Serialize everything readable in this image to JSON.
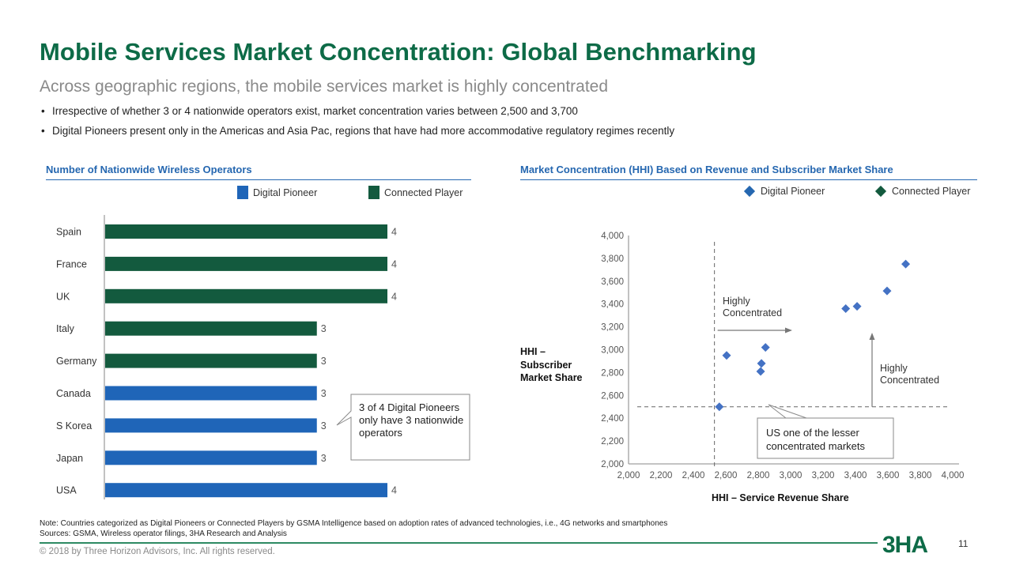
{
  "header": {
    "title": "Mobile Services Market Concentration: Global Benchmarking",
    "subtitle": "Across geographic regions, the mobile services market is highly concentrated",
    "bullets": [
      "Irrespective of whether 3 or 4 nationwide operators exist, market concentration varies between 2,500 and 3,700",
      "Digital Pioneers present only in the Americas and Asia Pac, regions that have had more accommodative regulatory regimes recently"
    ],
    "bullet_glyph": "•"
  },
  "colors": {
    "digital_pioneer_bar": "#1f65b8",
    "connected_player_bar": "#135a3e",
    "digital_pioneer_marker": "#4472c4",
    "connected_player_marker": "#135a3e",
    "title_green": "#0d6b47",
    "panel_blue": "#2567b0"
  },
  "chart_data": [
    {
      "type": "bar",
      "orientation": "horizontal",
      "title": "Number of Nationwide Wireless Operators",
      "legend": [
        {
          "label": "Digital Pioneer",
          "color": "#1f65b8"
        },
        {
          "label": "Connected Player",
          "color": "#135a3e"
        }
      ],
      "legend_position": "top-right",
      "categories": [
        "Spain",
        "France",
        "UK",
        "Italy",
        "Germany",
        "Canada",
        "S Korea",
        "Japan",
        "USA"
      ],
      "values": [
        4,
        4,
        4,
        3,
        3,
        3,
        3,
        3,
        4
      ],
      "groups": [
        "Connected Player",
        "Connected Player",
        "Connected Player",
        "Connected Player",
        "Connected Player",
        "Digital Pioneer",
        "Digital Pioneer",
        "Digital Pioneer",
        "Digital Pioneer"
      ],
      "data_labels": [
        "4",
        "4",
        "4",
        "3",
        "3",
        "3",
        "3",
        "3",
        "4"
      ],
      "xlim": [
        0,
        4
      ],
      "grid": false,
      "annotation": "3 of 4 Digital Pioneers only have 3 nationwide operators"
    },
    {
      "type": "scatter",
      "title": "Market Concentration (HHI) Based on Revenue and Subscriber Market Share",
      "xlabel": "HHI – Service Revenue Share",
      "ylabel": "HHI – Subscriber Market Share",
      "xlim": [
        2000,
        4000
      ],
      "ylim": [
        2000,
        4000
      ],
      "xticks": [
        "2,000",
        "2,200",
        "2,400",
        "2,600",
        "2,800",
        "3,000",
        "3,200",
        "3,400",
        "3,600",
        "3,800",
        "4,000"
      ],
      "yticks": [
        "2,000",
        "2,200",
        "2,400",
        "2,600",
        "2,800",
        "3,000",
        "3,200",
        "3,400",
        "3,600",
        "3,800",
        "4,000"
      ],
      "xtick_values": [
        2000,
        2200,
        2400,
        2600,
        2800,
        3000,
        3200,
        3400,
        3600,
        3800,
        4000
      ],
      "ytick_values": [
        2000,
        2200,
        2400,
        2600,
        2800,
        3000,
        3200,
        3400,
        3600,
        3800,
        4000
      ],
      "legend": [
        {
          "label": "Digital Pioneer",
          "color": "#2567b0"
        },
        {
          "label": "Connected Player",
          "color": "#135a3e"
        }
      ],
      "legend_position": "top-right",
      "grid": false,
      "series": [
        {
          "name": "Digital Pioneer",
          "points": [
            {
              "x": 2560,
              "y": 2500
            },
            {
              "x": 2605,
              "y": 2950
            },
            {
              "x": 2815,
              "y": 2810
            },
            {
              "x": 2820,
              "y": 2880
            },
            {
              "x": 2845,
              "y": 3020
            },
            {
              "x": 3340,
              "y": 3360
            },
            {
              "x": 3410,
              "y": 3380
            },
            {
              "x": 3595,
              "y": 3515
            },
            {
              "x": 3710,
              "y": 3750
            }
          ]
        }
      ],
      "threshold_x": 2530,
      "threshold_y": 2500,
      "annotations": [
        {
          "id": "hc-right",
          "text": [
            "Highly",
            "Concentrated"
          ],
          "arrow": "right"
        },
        {
          "id": "hc-up",
          "text": [
            "Highly",
            "Concentrated"
          ],
          "arrow": "up"
        },
        {
          "id": "us-callout",
          "text": [
            "US one of the lesser",
            "concentrated markets"
          ]
        }
      ]
    }
  ],
  "footer": {
    "note": "Note: Countries categorized as Digital Pioneers or Connected Players by GSMA Intelligence based on adoption rates of advanced technologies, i.e., 4G networks and smartphones",
    "sources": "Sources: GSMA, Wireless operator filings, 3HA Research and Analysis",
    "copyright": "© 2018 by Three Horizon Advisors, Inc. All rights reserved.",
    "logo_text": "3HA",
    "page_number": "11"
  }
}
